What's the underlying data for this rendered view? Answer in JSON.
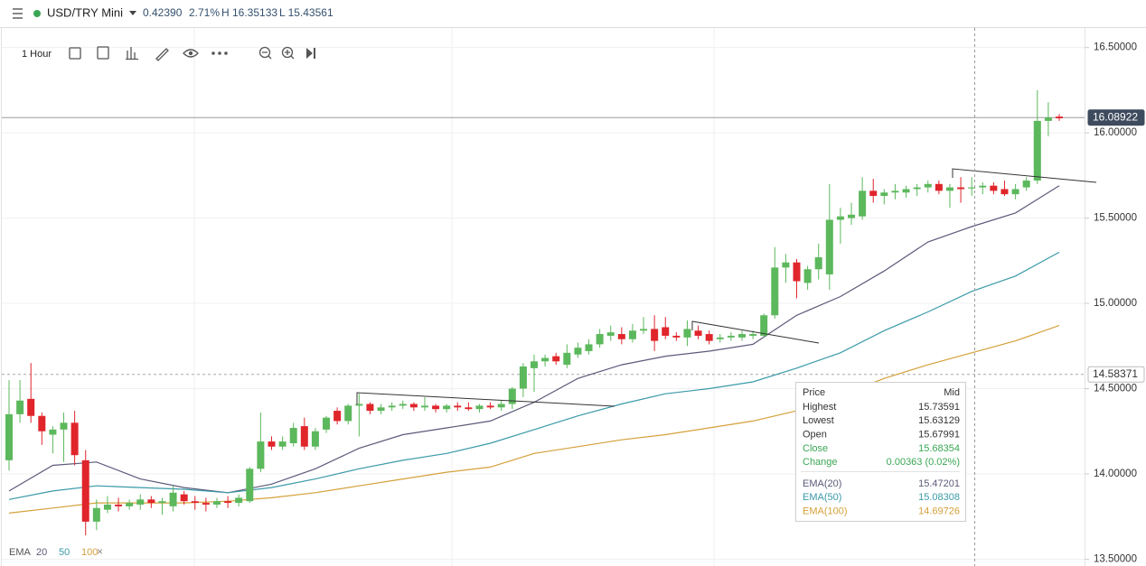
{
  "header": {
    "symbol": "USD/TRY Mini",
    "change": "0.42390",
    "change_pct": "2.71%",
    "high": "H 16.35133",
    "low": "L 15.43561"
  },
  "toolbar": {
    "interval": "1 Hour"
  },
  "legend": {
    "label": "EMA",
    "close": "×"
  },
  "tooltip": {
    "header": [
      "Price",
      "Mid"
    ],
    "rows": [
      [
        "Highest",
        "15.73591"
      ],
      [
        "Lowest",
        "15.63129"
      ],
      [
        "Open",
        "15.67991"
      ],
      [
        "Close",
        "15.68354"
      ],
      [
        "Change",
        "0.00363 (0.02%)"
      ]
    ],
    "ema_rows": [
      [
        "EMA(20)",
        "15.47201"
      ],
      [
        "EMA(50)",
        "15.08308"
      ],
      [
        "EMA(100)",
        "14.69726"
      ]
    ]
  },
  "chart_data": {
    "type": "candlestick",
    "up_color": "#5cb85c",
    "down_color": "#e0252b",
    "ylim": [
      13.46,
      16.62
    ],
    "yticks": [
      {
        "value": 13.5,
        "label": "13.50000"
      },
      {
        "value": 14.0,
        "label": "14.00000"
      },
      {
        "value": 14.5,
        "label": "14.50000"
      },
      {
        "value": 15.0,
        "label": "15.00000"
      },
      {
        "value": 15.5,
        "label": "15.50000"
      },
      {
        "value": 16.0,
        "label": "16.00000"
      },
      {
        "value": 16.5,
        "label": "16.50000"
      }
    ],
    "grid": true,
    "price_lines": [
      {
        "value": 16.08922,
        "style": "solid"
      },
      {
        "value": 14.58371,
        "style": "dashed"
      }
    ],
    "open": [
      14.08,
      14.35,
      14.44,
      14.34,
      14.23,
      14.26,
      14.3,
      14.08,
      13.72,
      13.79,
      13.82,
      13.81,
      13.82,
      13.85,
      13.83,
      13.81,
      13.88,
      13.84,
      13.83,
      13.82,
      13.84,
      13.83,
      13.84,
      14.03,
      14.19,
      14.16,
      14.18,
      14.28,
      14.16,
      14.26,
      14.37,
      14.31,
      14.4,
      14.41,
      14.37,
      14.39,
      14.4,
      14.41,
      14.39,
      14.4,
      14.38,
      14.4,
      14.39,
      14.38,
      14.4,
      14.39,
      14.41,
      14.5,
      14.62,
      14.66,
      14.69,
      14.64,
      14.7,
      14.72,
      14.76,
      14.81,
      14.82,
      14.79,
      14.84,
      14.85,
      14.86,
      14.81,
      14.8,
      14.84,
      14.82,
      14.79,
      14.8,
      14.8,
      14.81,
      14.81,
      14.93,
      15.21,
      15.24,
      15.12,
      15.2,
      15.17,
      15.49,
      15.5,
      15.51,
      15.66,
      15.63,
      15.65,
      15.65,
      15.67,
      15.68,
      15.7,
      15.66,
      15.68,
      15.68,
      15.68,
      15.69,
      15.67,
      15.64,
      15.68,
      15.72,
      16.07,
      16.095
    ],
    "high": [
      14.55,
      14.55,
      14.65,
      14.36,
      14.28,
      14.36,
      14.37,
      14.14,
      13.85,
      13.87,
      13.86,
      13.85,
      13.88,
      13.87,
      13.86,
      13.93,
      13.9,
      13.87,
      13.86,
      13.86,
      13.87,
      13.88,
      14.04,
      14.36,
      14.22,
      14.22,
      14.3,
      14.33,
      14.27,
      14.34,
      14.39,
      14.41,
      14.47,
      14.42,
      14.41,
      14.42,
      14.43,
      14.42,
      14.45,
      14.41,
      14.41,
      14.42,
      14.42,
      14.41,
      14.42,
      14.43,
      14.51,
      14.65,
      14.7,
      14.7,
      14.71,
      14.76,
      14.77,
      14.79,
      14.85,
      14.87,
      14.86,
      14.88,
      14.92,
      14.93,
      14.92,
      14.83,
      14.9,
      14.87,
      14.84,
      14.82,
      14.83,
      14.84,
      14.84,
      14.94,
      15.33,
      15.29,
      15.26,
      15.22,
      15.35,
      15.7,
      15.56,
      15.59,
      15.74,
      15.73,
      15.67,
      15.7,
      15.69,
      15.7,
      15.72,
      15.72,
      15.7,
      15.74,
      15.74,
      15.71,
      15.71,
      15.72,
      15.7,
      15.74,
      16.25,
      16.18,
      16.11
    ],
    "low": [
      14.02,
      14.3,
      14.3,
      14.17,
      14.12,
      14.07,
      14.05,
      13.64,
      13.67,
      13.77,
      13.78,
      13.79,
      13.79,
      13.8,
      13.76,
      13.78,
      13.82,
      13.79,
      13.78,
      13.8,
      13.8,
      13.81,
      13.83,
      14.01,
      14.14,
      14.14,
      14.16,
      14.14,
      14.14,
      14.24,
      14.29,
      14.29,
      14.22,
      14.35,
      14.35,
      14.37,
      14.38,
      14.37,
      14.37,
      14.36,
      14.36,
      14.37,
      14.37,
      14.36,
      14.38,
      14.37,
      14.38,
      14.45,
      14.48,
      14.63,
      14.64,
      14.62,
      14.68,
      14.7,
      14.74,
      14.78,
      14.76,
      14.77,
      14.82,
      14.72,
      14.79,
      14.78,
      14.75,
      14.79,
      14.76,
      14.77,
      14.78,
      14.78,
      14.79,
      14.8,
      14.91,
      15.12,
      15.03,
      15.08,
      15.14,
      15.08,
      15.35,
      15.46,
      15.49,
      15.59,
      15.58,
      15.61,
      15.62,
      15.63,
      15.65,
      15.64,
      15.56,
      15.59,
      15.63,
      15.64,
      15.64,
      15.63,
      15.61,
      15.66,
      15.7,
      15.98,
      16.07
    ],
    "close": [
      14.35,
      14.43,
      14.34,
      14.25,
      14.26,
      14.3,
      14.11,
      13.72,
      13.8,
      13.82,
      13.81,
      13.83,
      13.85,
      13.83,
      13.84,
      13.89,
      13.84,
      13.83,
      13.82,
      13.84,
      13.83,
      13.86,
      14.03,
      14.19,
      14.16,
      14.19,
      14.27,
      14.16,
      14.25,
      14.33,
      14.31,
      14.4,
      14.41,
      14.37,
      14.39,
      14.4,
      14.41,
      14.39,
      14.4,
      14.38,
      14.4,
      14.39,
      14.38,
      14.4,
      14.39,
      14.41,
      14.5,
      14.63,
      14.66,
      14.68,
      14.66,
      14.71,
      14.74,
      14.76,
      14.82,
      14.83,
      14.79,
      14.84,
      14.85,
      14.78,
      14.81,
      14.8,
      14.85,
      14.81,
      14.78,
      14.8,
      14.81,
      14.82,
      14.82,
      14.93,
      15.21,
      15.24,
      15.13,
      15.2,
      15.27,
      15.49,
      15.51,
      15.52,
      15.66,
      15.63,
      15.65,
      15.66,
      15.67,
      15.68,
      15.7,
      15.66,
      15.68,
      15.67,
      15.68,
      15.69,
      15.66,
      15.64,
      15.67,
      15.72,
      16.07,
      16.09,
      16.085
    ],
    "series": [
      {
        "name": "20",
        "color": "#5b5a7a",
        "values": [
          13.9,
          14.05,
          14.07,
          13.97,
          13.92,
          13.89,
          13.94,
          14.03,
          14.15,
          14.23,
          14.27,
          14.31,
          14.42,
          14.56,
          14.64,
          14.69,
          14.72,
          14.76,
          14.93,
          15.04,
          15.19,
          15.36,
          15.45,
          15.53,
          15.69
        ]
      },
      {
        "name": "50",
        "color": "#3a9aa8",
        "values": [
          13.85,
          13.9,
          13.93,
          13.92,
          13.91,
          13.89,
          13.92,
          13.97,
          14.03,
          14.08,
          14.12,
          14.18,
          14.26,
          14.34,
          14.41,
          14.47,
          14.5,
          14.54,
          14.62,
          14.71,
          14.84,
          14.95,
          15.07,
          15.16,
          15.3
        ]
      },
      {
        "name": "100",
        "color": "#d4a03a",
        "values": [
          13.77,
          13.8,
          13.83,
          13.83,
          13.83,
          13.84,
          13.86,
          13.89,
          13.93,
          13.97,
          14.01,
          14.04,
          14.12,
          14.16,
          14.2,
          14.23,
          14.27,
          14.31,
          14.37,
          14.46,
          14.56,
          14.64,
          14.71,
          14.78,
          14.87
        ]
      }
    ]
  }
}
